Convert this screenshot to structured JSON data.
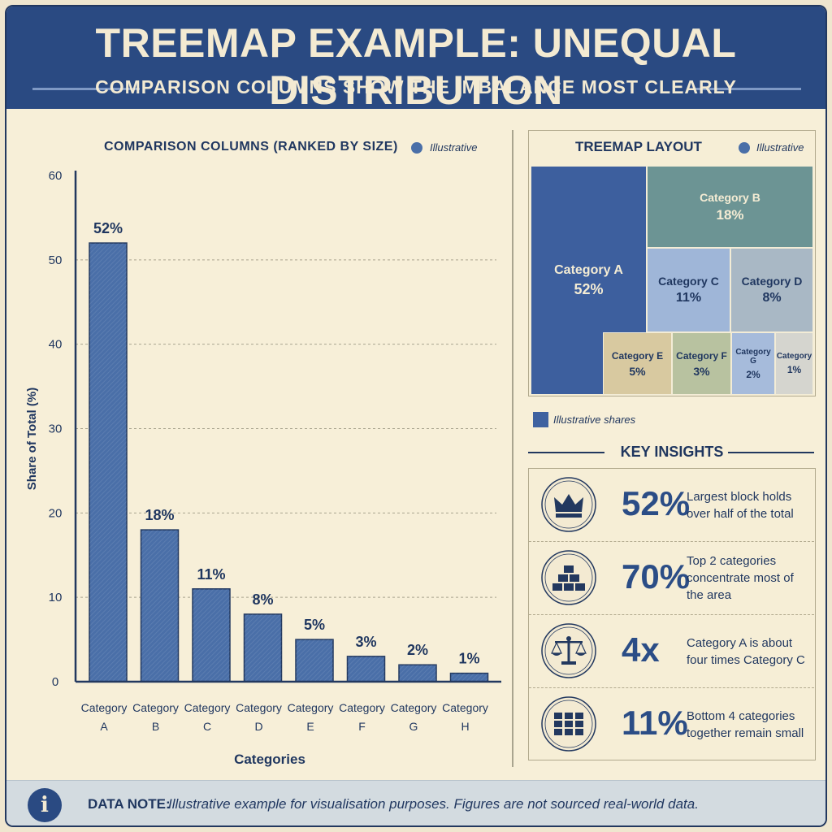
{
  "header": {
    "title": "TREEMAP EXAMPLE: UNEQUAL DISTRIBUTION",
    "subtitle": "COMPARISON COLUMNS SHOW THE IMBALANCE MOST CLEARLY"
  },
  "bar_panel": {
    "title": "COMPARISON COLUMNS (RANKED BY SIZE)",
    "legend": "Illustrative"
  },
  "treemap_panel": {
    "title": "TREEMAP LAYOUT",
    "legend": "Illustrative",
    "footer_legend": "Illustrative shares"
  },
  "insights": {
    "title": "KEY INSIGHTS",
    "items": [
      {
        "icon": "crown-icon",
        "value": "52%",
        "text": "Largest block holds over half of the total"
      },
      {
        "icon": "stacked-blocks-icon",
        "value": "70%",
        "text": "Top 2 categories concentrate most of the area"
      },
      {
        "icon": "balance-scale-icon",
        "value": "4x",
        "text": "Category A is about four times Category C"
      },
      {
        "icon": "grid-icon",
        "value": "11%",
        "text": "Bottom 4 categories together remain small"
      }
    ]
  },
  "footer": {
    "label": "DATA NOTE:",
    "text": "Illustrative example for visualisation purposes. Figures are not sourced real-world data."
  },
  "colors": {
    "primary": "#2a4a82",
    "bar": "#4a6fa8",
    "cream": "#f7efd8"
  },
  "chart_data": [
    {
      "type": "bar",
      "title": "COMPARISON COLUMNS (RANKED BY SIZE)",
      "xlabel": "Categories",
      "ylabel": "Share of Total (%)",
      "categories": [
        "Category A",
        "Category B",
        "Category C",
        "Category D",
        "Category E",
        "Category F",
        "Category G",
        "Category H"
      ],
      "values": [
        52,
        18,
        11,
        8,
        5,
        3,
        2,
        1
      ],
      "data_labels": [
        "52%",
        "18%",
        "11%",
        "8%",
        "5%",
        "3%",
        "2%",
        "1%"
      ],
      "ylim": [
        0,
        60
      ],
      "yticks": [
        0,
        10,
        20,
        30,
        40,
        50,
        60
      ],
      "grid": true,
      "legend": "top-right"
    },
    {
      "type": "treemap",
      "title": "TREEMAP LAYOUT",
      "items": [
        {
          "label": "Category A",
          "value": 52,
          "value_label": "52%",
          "color": "#3d5f9e"
        },
        {
          "label": "Category B",
          "value": 18,
          "value_label": "18%",
          "color": "#6c9494"
        },
        {
          "label": "Category C",
          "value": 11,
          "value_label": "11%",
          "color": "#9fb6d8"
        },
        {
          "label": "Category D",
          "value": 8,
          "value_label": "8%",
          "color": "#a9b8c5"
        },
        {
          "label": "Category E",
          "value": 5,
          "value_label": "5%",
          "color": "#d8c9a0"
        },
        {
          "label": "Category F",
          "value": 3,
          "value_label": "3%",
          "color": "#b8c2a0"
        },
        {
          "label": "Category G",
          "value": 2,
          "value_label": "2%",
          "color": "#a6bbdb"
        },
        {
          "label": "Category",
          "value": 1,
          "value_label": "1%",
          "color": "#d5d5cf"
        }
      ],
      "legend": "top-right"
    }
  ]
}
